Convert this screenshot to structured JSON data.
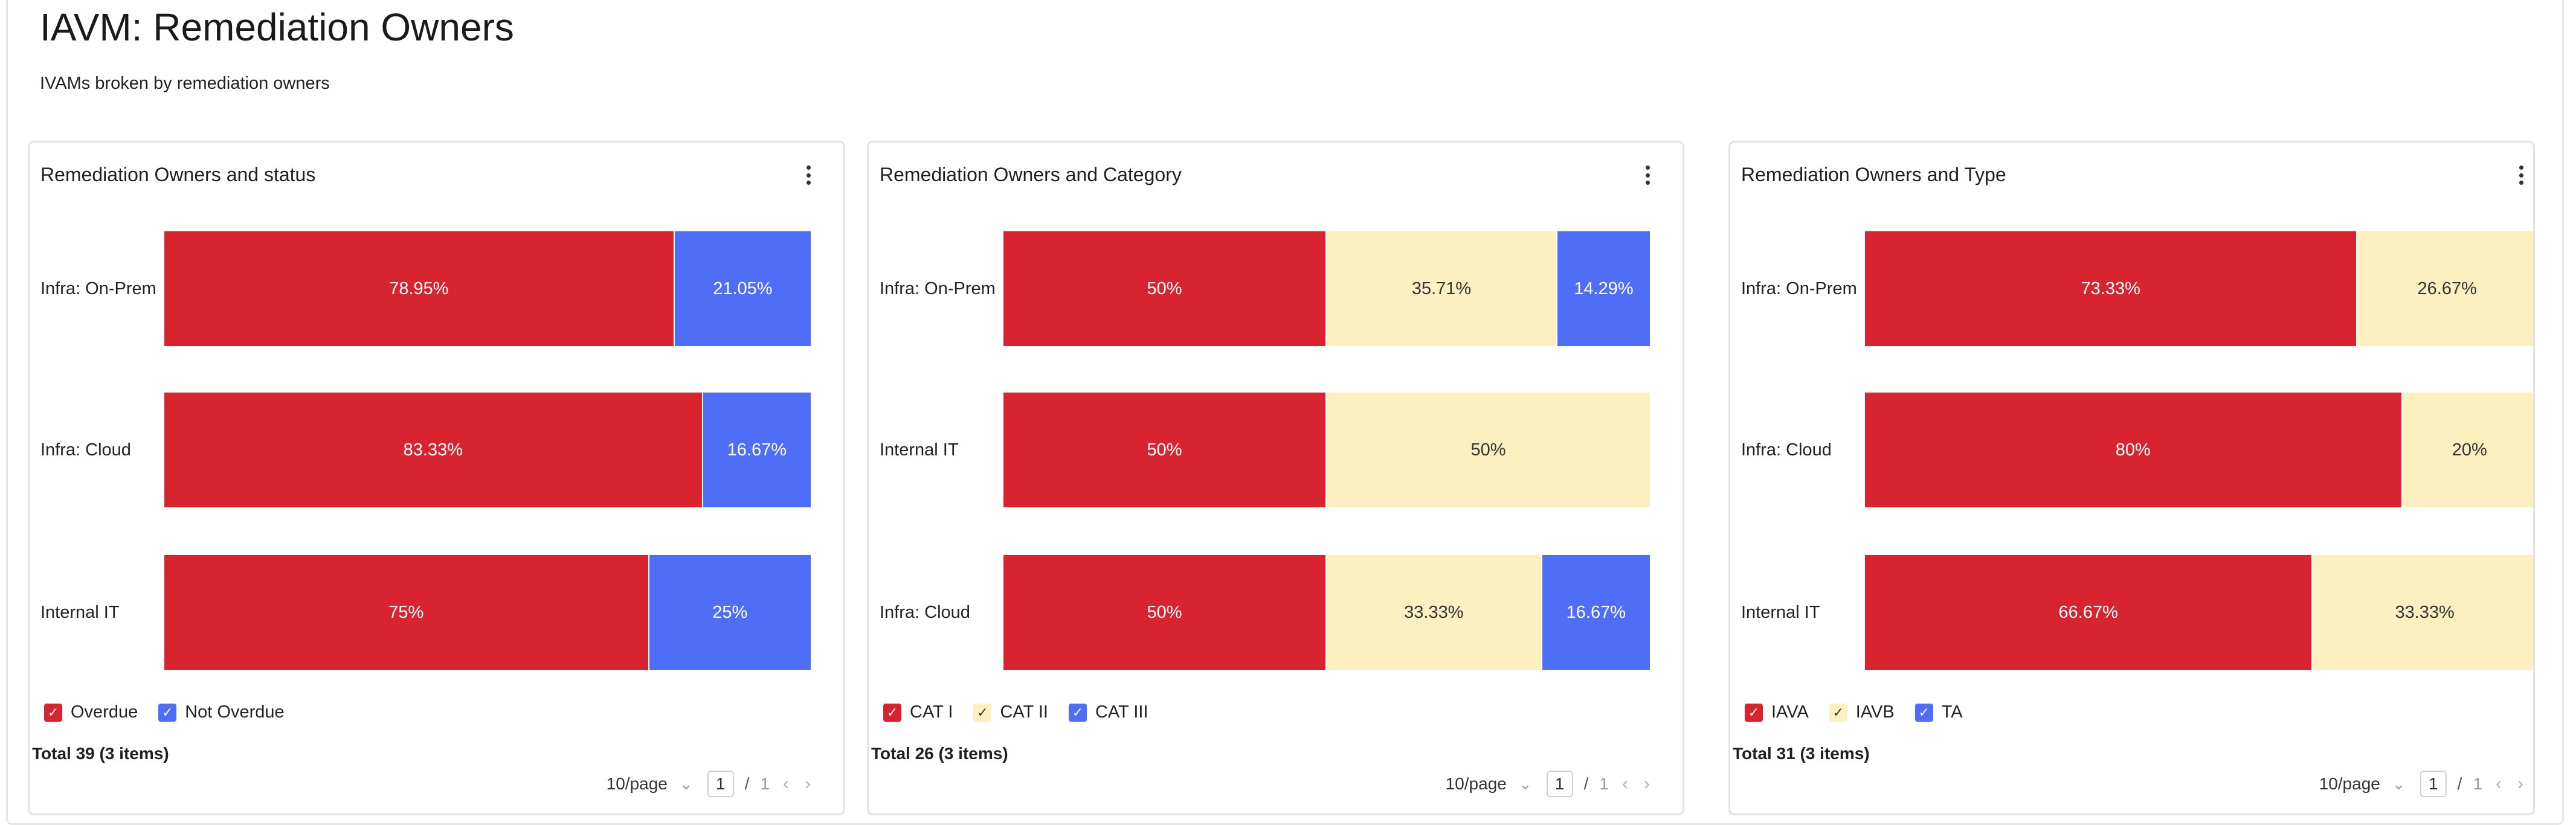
{
  "page": {
    "title": "IAVM: Remediation Owners",
    "subtitle": "IVAMs broken by remediation owners"
  },
  "cards": [
    {
      "title": "Remediation Owners and status",
      "rows": [
        {
          "label": "Infra: On-Prem",
          "segments": [
            {
              "label": "78.95%",
              "value": 78.95,
              "color": "#d7242f"
            },
            {
              "label": "21.05%",
              "value": 21.05,
              "color": "#4f6ef7"
            }
          ]
        },
        {
          "label": "Infra: Cloud",
          "segments": [
            {
              "label": "83.33%",
              "value": 83.33,
              "color": "#d7242f"
            },
            {
              "label": "16.67%",
              "value": 16.67,
              "color": "#4f6ef7"
            }
          ]
        },
        {
          "label": "Internal IT",
          "segments": [
            {
              "label": "75%",
              "value": 75,
              "color": "#d7242f"
            },
            {
              "label": "25%",
              "value": 25,
              "color": "#4f6ef7"
            }
          ]
        }
      ],
      "legend": [
        {
          "label": "Overdue",
          "color": "#d7242f"
        },
        {
          "label": "Not Overdue",
          "color": "#4f6ef7"
        }
      ],
      "total": "Total 39 (3 items)",
      "pager": {
        "page_size": "10/page",
        "current": "1",
        "sep": "/",
        "max": "1"
      }
    },
    {
      "title": "Remediation Owners and Category",
      "rows": [
        {
          "label": "Infra: On-Prem",
          "segments": [
            {
              "label": "50%",
              "value": 50,
              "color": "#d7242f"
            },
            {
              "label": "35.71%",
              "value": 35.71,
              "color": "#fdf0c0"
            },
            {
              "label": "14.29%",
              "value": 14.29,
              "color": "#4f6ef7"
            }
          ]
        },
        {
          "label": "Internal IT",
          "segments": [
            {
              "label": "50%",
              "value": 50,
              "color": "#d7242f"
            },
            {
              "label": "50%",
              "value": 50,
              "color": "#fdf0c0"
            }
          ]
        },
        {
          "label": "Infra: Cloud",
          "segments": [
            {
              "label": "50%",
              "value": 50,
              "color": "#d7242f"
            },
            {
              "label": "33.33%",
              "value": 33.33,
              "color": "#fdf0c0"
            },
            {
              "label": "16.67%",
              "value": 16.67,
              "color": "#4f6ef7"
            }
          ]
        }
      ],
      "legend": [
        {
          "label": "CAT I",
          "color": "#d7242f"
        },
        {
          "label": "CAT II",
          "color": "#fdf0c0"
        },
        {
          "label": "CAT III",
          "color": "#4f6ef7"
        }
      ],
      "total": "Total 26 (3 items)",
      "pager": {
        "page_size": "10/page",
        "current": "1",
        "sep": "/",
        "max": "1"
      }
    },
    {
      "title": "Remediation Owners and Type",
      "rows": [
        {
          "label": "Infra: On-Prem",
          "segments": [
            {
              "label": "73.33%",
              "value": 73.33,
              "color": "#d7242f"
            },
            {
              "label": "26.67%",
              "value": 26.67,
              "color": "#fdf0c0"
            }
          ]
        },
        {
          "label": "Infra: Cloud",
          "segments": [
            {
              "label": "80%",
              "value": 80,
              "color": "#d7242f"
            },
            {
              "label": "20%",
              "value": 20,
              "color": "#fdf0c0"
            }
          ]
        },
        {
          "label": "Internal IT",
          "segments": [
            {
              "label": "66.67%",
              "value": 66.67,
              "color": "#d7242f"
            },
            {
              "label": "33.33%",
              "value": 33.33,
              "color": "#fdf0c0"
            }
          ]
        }
      ],
      "legend": [
        {
          "label": "IAVA",
          "color": "#d7242f"
        },
        {
          "label": "IAVB",
          "color": "#fdf0c0"
        },
        {
          "label": "TA",
          "color": "#4f6ef7"
        }
      ],
      "total": "Total 31 (3 items)",
      "pager": {
        "page_size": "10/page",
        "current": "1",
        "sep": "/",
        "max": "1"
      }
    }
  ],
  "icons": {
    "more": "kebab-menu-icon",
    "check": "checkbox-check-icon",
    "prev": "chevron-left-icon",
    "next": "chevron-right-icon",
    "dropdown": "chevron-down-icon"
  }
}
